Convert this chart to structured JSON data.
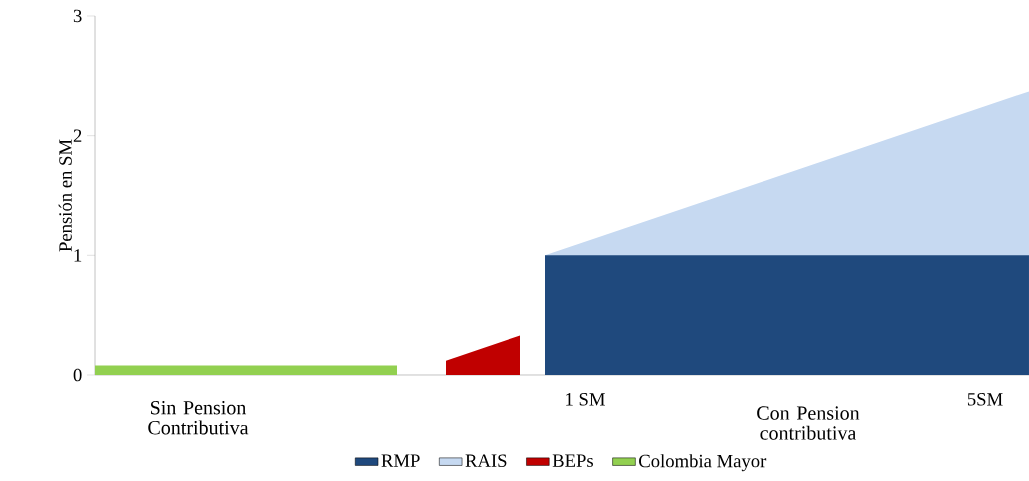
{
  "chart_data": {
    "type": "area",
    "ylabel": "Pensión en SM",
    "xlim": [
      -3.9,
      5.44
    ],
    "xticks": [
      {
        "value": 1,
        "label": "1 SM"
      },
      {
        "value": 5,
        "label": "5SM"
      }
    ],
    "ylim": [
      0,
      3
    ],
    "yticks": [
      0,
      1,
      2,
      3
    ],
    "grid": false,
    "legend": "bottom",
    "annotations": [
      "Sin Pension Contributiva",
      "Con Pension contributiva"
    ],
    "series": [
      {
        "name": "RMP",
        "color": "#1f497d",
        "x": [
          0.6,
          5.44
        ],
        "values": [
          1,
          1
        ]
      },
      {
        "name": "RAIS",
        "color": "#c6d9f1",
        "x": [
          0.6,
          5.44
        ],
        "values": [
          1,
          2.37
        ]
      },
      {
        "name": "BEPs",
        "color": "#c00000",
        "x": [
          -0.39,
          0.35
        ],
        "values": [
          0.12,
          0.33
        ]
      },
      {
        "name": "Colombia Mayor",
        "color": "#92d050",
        "x": [
          -3.9,
          -0.88
        ],
        "values": [
          0.08,
          0.08
        ]
      }
    ]
  }
}
